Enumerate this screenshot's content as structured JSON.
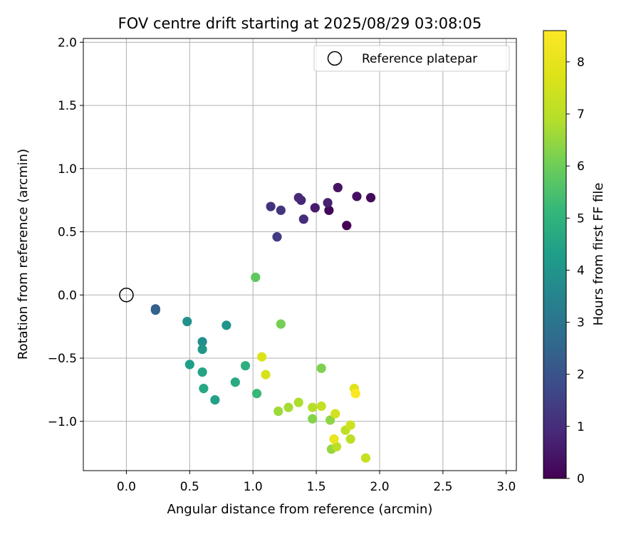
{
  "chart_data": {
    "type": "scatter",
    "title": "FOV centre drift starting at 2025/08/29 03:08:05",
    "xlabel": "Angular distance from reference (arcmin)",
    "ylabel": "Rotation from reference (arcmin)",
    "xlim": [
      -0.34,
      3.08
    ],
    "ylim": [
      -1.39,
      2.03
    ],
    "xticks": [
      0.0,
      0.5,
      1.0,
      1.5,
      2.0,
      2.5,
      3.0
    ],
    "xtick_labels": [
      "0.0",
      "0.5",
      "1.0",
      "1.5",
      "2.0",
      "2.5",
      "3.0"
    ],
    "yticks": [
      -1.0,
      -0.5,
      0.0,
      0.5,
      1.0,
      1.5,
      2.0
    ],
    "ytick_labels": [
      "−1.0",
      "−0.5",
      "0.0",
      "0.5",
      "1.0",
      "1.5",
      "2.0"
    ],
    "grid": true,
    "legend": {
      "placement": "top-right",
      "entries": [
        {
          "label": "Reference platepar",
          "marker": "open-circle",
          "color": "#000000"
        }
      ]
    },
    "reference_point": {
      "x": 0.0,
      "y": 0.0
    },
    "colorbar": {
      "label": "Hours from first FF file",
      "colormap": "viridis",
      "range": [
        0,
        8.6
      ],
      "ticks": [
        0,
        1,
        2,
        3,
        4,
        5,
        6,
        7,
        8
      ],
      "tick_labels": [
        "0",
        "1",
        "2",
        "3",
        "4",
        "5",
        "6",
        "7",
        "8"
      ]
    },
    "series": [
      {
        "points": [
          {
            "x": 1.74,
            "y": 0.55,
            "hours": 0.0
          },
          {
            "x": 1.6,
            "y": 0.67,
            "hours": 0.1
          },
          {
            "x": 1.93,
            "y": 0.77,
            "hours": 0.2
          },
          {
            "x": 1.82,
            "y": 0.78,
            "hours": 0.3
          },
          {
            "x": 1.67,
            "y": 0.85,
            "hours": 0.4
          },
          {
            "x": 1.49,
            "y": 0.69,
            "hours": 0.6
          },
          {
            "x": 1.59,
            "y": 0.73,
            "hours": 0.7
          },
          {
            "x": 1.38,
            "y": 0.75,
            "hours": 0.8
          },
          {
            "x": 1.36,
            "y": 0.77,
            "hours": 0.9
          },
          {
            "x": 1.4,
            "y": 0.6,
            "hours": 1.0
          },
          {
            "x": 1.14,
            "y": 0.7,
            "hours": 1.1
          },
          {
            "x": 1.22,
            "y": 0.67,
            "hours": 1.2
          },
          {
            "x": 1.19,
            "y": 0.46,
            "hours": 1.35
          },
          {
            "x": 0.23,
            "y": -0.11,
            "hours": 2.2
          },
          {
            "x": 0.23,
            "y": -0.12,
            "hours": 2.4
          },
          {
            "x": 0.6,
            "y": -0.37,
            "hours": 3.8
          },
          {
            "x": 0.48,
            "y": -0.21,
            "hours": 3.9
          },
          {
            "x": 0.79,
            "y": -0.24,
            "hours": 4.0
          },
          {
            "x": 0.6,
            "y": -0.43,
            "hours": 4.1
          },
          {
            "x": 0.5,
            "y": -0.55,
            "hours": 4.3
          },
          {
            "x": 0.7,
            "y": -0.83,
            "hours": 4.4
          },
          {
            "x": 0.6,
            "y": -0.61,
            "hours": 4.5
          },
          {
            "x": 0.61,
            "y": -0.74,
            "hours": 4.6
          },
          {
            "x": 0.86,
            "y": -0.69,
            "hours": 4.7
          },
          {
            "x": 0.94,
            "y": -0.56,
            "hours": 4.9
          },
          {
            "x": 1.03,
            "y": -0.78,
            "hours": 5.2
          },
          {
            "x": 1.02,
            "y": 0.14,
            "hours": 5.8
          },
          {
            "x": 1.22,
            "y": -0.23,
            "hours": 6.1
          },
          {
            "x": 1.54,
            "y": -0.58,
            "hours": 6.2
          },
          {
            "x": 1.47,
            "y": -0.98,
            "hours": 6.3
          },
          {
            "x": 1.61,
            "y": -0.99,
            "hours": 6.4
          },
          {
            "x": 1.62,
            "y": -1.22,
            "hours": 6.5
          },
          {
            "x": 1.2,
            "y": -0.92,
            "hours": 6.6
          },
          {
            "x": 1.28,
            "y": -0.89,
            "hours": 6.7
          },
          {
            "x": 1.36,
            "y": -0.85,
            "hours": 6.8
          },
          {
            "x": 1.47,
            "y": -0.89,
            "hours": 6.9
          },
          {
            "x": 1.66,
            "y": -1.2,
            "hours": 7.0
          },
          {
            "x": 1.77,
            "y": -1.14,
            "hours": 7.05
          },
          {
            "x": 1.73,
            "y": -1.07,
            "hours": 7.1
          },
          {
            "x": 1.54,
            "y": -0.88,
            "hours": 7.2
          },
          {
            "x": 1.89,
            "y": -1.29,
            "hours": 7.3
          },
          {
            "x": 1.77,
            "y": -1.03,
            "hours": 7.4
          },
          {
            "x": 1.65,
            "y": -0.94,
            "hours": 7.5
          },
          {
            "x": 1.1,
            "y": -0.63,
            "hours": 7.6
          },
          {
            "x": 1.07,
            "y": -0.49,
            "hours": 7.7
          },
          {
            "x": 1.8,
            "y": -0.74,
            "hours": 7.8
          },
          {
            "x": 1.64,
            "y": -1.14,
            "hours": 8.1
          },
          {
            "x": 1.81,
            "y": -0.78,
            "hours": 8.55
          }
        ]
      }
    ]
  }
}
